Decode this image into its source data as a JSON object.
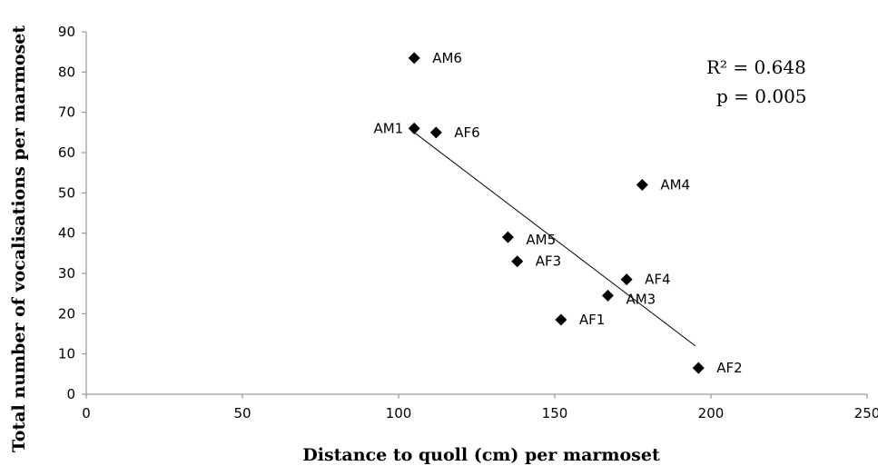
{
  "chart_data": {
    "type": "scatter",
    "title": "",
    "xlabel": "Distance to quoll (cm) per marmoset",
    "ylabel": "Total number of vocalisations per marmoset",
    "xlim": [
      0,
      250
    ],
    "ylim": [
      0,
      90
    ],
    "xticks": [
      0,
      50,
      100,
      150,
      200,
      250
    ],
    "yticks": [
      0,
      10,
      20,
      30,
      40,
      50,
      60,
      70,
      80,
      90
    ],
    "grid": false,
    "points": [
      {
        "label": "AM6",
        "x": 105,
        "y": 83.5
      },
      {
        "label": "AM1",
        "x": 105,
        "y": 66
      },
      {
        "label": "AF6",
        "x": 112,
        "y": 65
      },
      {
        "label": "AM4",
        "x": 178,
        "y": 52
      },
      {
        "label": "AM5",
        "x": 135,
        "y": 39
      },
      {
        "label": "AF3",
        "x": 138,
        "y": 33
      },
      {
        "label": "AF4",
        "x": 173,
        "y": 28.5
      },
      {
        "label": "AM3",
        "x": 167,
        "y": 24.5
      },
      {
        "label": "AF1",
        "x": 152,
        "y": 18.5
      },
      {
        "label": "AF2",
        "x": 196,
        "y": 6.5
      }
    ],
    "trendline": {
      "x1": 105,
      "y1": 65,
      "x2": 195,
      "y2": 12
    },
    "annotations": {
      "r2": "R² = 0.648",
      "p": "p = 0.005"
    },
    "marker_color": "#000000"
  }
}
